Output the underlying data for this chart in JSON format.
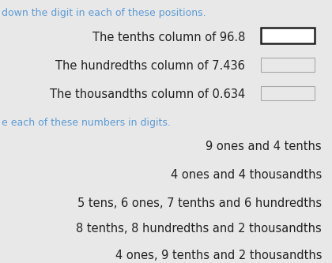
{
  "bg_color": "#e8e8e8",
  "top_text": "down the digit in each of these positions.",
  "top_text_color": "#5b9bd5",
  "section1_lines": [
    "The tenths column of 96.8",
    "The hundredths column of 7.436",
    "The thousandths column of 0.634"
  ],
  "section1_color": "#222222",
  "section2_header": "e each of these numbers in digits.",
  "section2_header_color": "#5b9bd5",
  "section2_lines": [
    "9 ones and 4 tenths",
    "4 ones and 4 thousandths",
    "5 tens, 6 ones, 7 tenths and 6 hundredths",
    "8 tenths, 8 hundredths and 2 thousandths",
    "4 ones, 9 tenths and 2 thousandths"
  ],
  "section2_color": "#222222",
  "fontsize_main": 10.5,
  "fontsize_header": 9.0
}
